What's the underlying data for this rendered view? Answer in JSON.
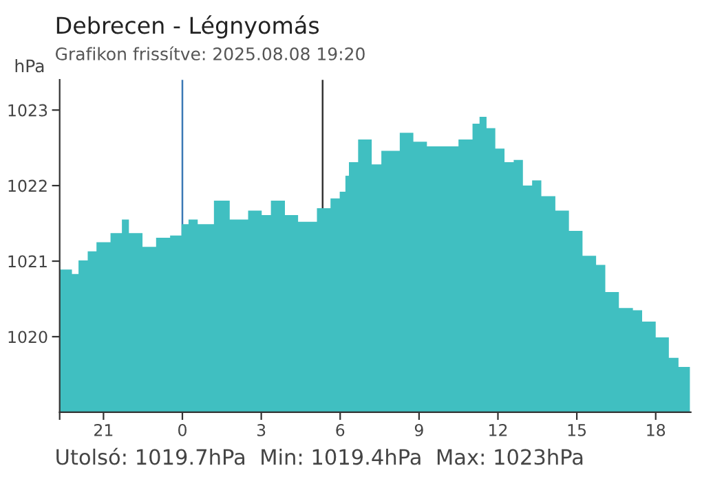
{
  "chart_data": {
    "type": "area",
    "title": "Debrecen - Légnyomás",
    "subtitle": "Grafikon frissítve: 2025.08.08 19:20",
    "ylabel": "hPa",
    "annotations": [
      "Utolsó: 1019.7hPa  Min: 1019.4hPa  Max: 1023hPa"
    ],
    "series": [
      {
        "color": "#40bfc1",
        "x": [
          "2025-08-07T19:20",
          "2025-08-07T19:48",
          "2025-08-07T20:03",
          "2025-08-07T20:24",
          "2025-08-07T20:44",
          "2025-08-07T21:16",
          "2025-08-07T21:42",
          "2025-08-07T21:58",
          "2025-08-07T22:29",
          "2025-08-07T23:00",
          "2025-08-07T23:32",
          "2025-08-07T23:58",
          "2025-08-08T00:14",
          "2025-08-08T00:35",
          "2025-08-08T01:12",
          "2025-08-08T01:48",
          "2025-08-08T02:30",
          "2025-08-08T03:01",
          "2025-08-08T03:22",
          "2025-08-08T03:54",
          "2025-08-08T04:24",
          "2025-08-08T05:07",
          "2025-08-08T05:38",
          "2025-08-08T05:59",
          "2025-08-08T06:12",
          "2025-08-08T06:20",
          "2025-08-08T06:41",
          "2025-08-08T07:12",
          "2025-08-08T07:34",
          "2025-08-08T08:16",
          "2025-08-08T08:47",
          "2025-08-08T09:18",
          "2025-08-08T09:50",
          "2025-08-08T10:30",
          "2025-08-08T11:02",
          "2025-08-08T11:18",
          "2025-08-08T11:34",
          "2025-08-08T11:54",
          "2025-08-08T12:15",
          "2025-08-08T12:36",
          "2025-08-08T12:57",
          "2025-08-08T13:18",
          "2025-08-08T13:39",
          "2025-08-08T14:11",
          "2025-08-08T14:42",
          "2025-08-08T15:13",
          "2025-08-08T15:44",
          "2025-08-08T16:05",
          "2025-08-08T16:36",
          "2025-08-08T17:08",
          "2025-08-08T17:29",
          "2025-08-08T18:00",
          "2025-08-08T18:30",
          "2025-08-08T18:52",
          "2025-08-08T19:18"
        ],
        "values": [
          1020.89,
          1020.83,
          1021.01,
          1021.13,
          1021.25,
          1021.37,
          1021.55,
          1021.37,
          1021.19,
          1021.31,
          1021.34,
          1021.49,
          1021.55,
          1021.49,
          1021.8,
          1021.55,
          1021.67,
          1021.61,
          1021.8,
          1021.61,
          1021.52,
          1021.7,
          1021.83,
          1021.92,
          1022.13,
          1022.31,
          1022.61,
          1022.28,
          1022.46,
          1022.7,
          1022.58,
          1022.52,
          1022.52,
          1022.61,
          1022.82,
          1022.91,
          1022.76,
          1022.49,
          1022.31,
          1022.34,
          1022.0,
          1022.07,
          1021.86,
          1021.67,
          1021.4,
          1021.07,
          1020.95,
          1020.59,
          1020.38,
          1020.35,
          1020.2,
          1019.99,
          1019.72,
          1019.6,
          1019.69
        ]
      }
    ],
    "xlim": [
      "2025-08-07T19:20",
      "2025-08-08T19:20"
    ],
    "xticks": [
      {
        "value": "2025-08-07T19:20",
        "label": null
      },
      {
        "value": "2025-08-07T21:00",
        "label": "21"
      },
      {
        "value": "2025-08-08T00:00",
        "label": "0"
      },
      {
        "value": "2025-08-08T03:00",
        "label": "3"
      },
      {
        "value": "2025-08-08T06:00",
        "label": "6"
      },
      {
        "value": "2025-08-08T09:00",
        "label": "9"
      },
      {
        "value": "2025-08-08T12:00",
        "label": "12"
      },
      {
        "value": "2025-08-08T15:00",
        "label": "15"
      },
      {
        "value": "2025-08-08T18:00",
        "label": "18"
      }
    ],
    "ylim": [
      1019,
      1023.4
    ],
    "yticks": [
      1020,
      1021,
      1022,
      1023
    ],
    "ref_lines": [
      {
        "axis": "x",
        "value": "2025-08-08T00:00",
        "color": "#3a78b5"
      },
      {
        "axis": "x",
        "value": "2025-08-08T05:20",
        "color": "#333333"
      }
    ],
    "grid": false,
    "legend": false
  }
}
